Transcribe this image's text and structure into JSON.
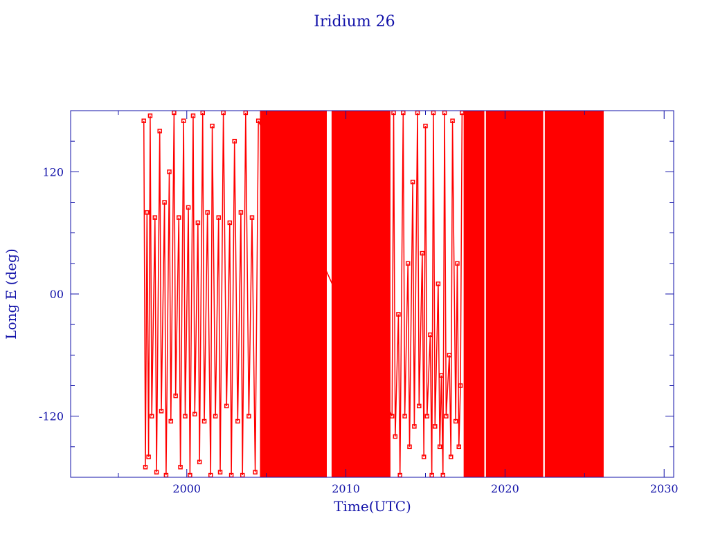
{
  "chart_data": {
    "type": "line",
    "title": "Iridium 26",
    "xlabel": "Time(UTC)",
    "ylabel": "Long E (deg)",
    "xlim": [
      1992.7,
      2030.6
    ],
    "ylim": [
      -180,
      180
    ],
    "x_ticks": [
      2000,
      2010,
      2020,
      2030
    ],
    "x_tick_labels": [
      "2000",
      "2010",
      "2020",
      "2030"
    ],
    "y_ticks": [
      -120,
      0,
      120
    ],
    "y_tick_labels": [
      "-120",
      "00",
      "120"
    ],
    "y_minor_step": 30,
    "grid": false,
    "colors": {
      "axis": "#1010a8",
      "series": "#ff0000"
    },
    "dense_ranges": [
      [
        2004.6,
        2008.8
      ],
      [
        2009.1,
        2012.8
      ],
      [
        2017.4,
        2018.7
      ],
      [
        2018.8,
        2022.4
      ],
      [
        2022.5,
        2026.2
      ]
    ],
    "series": [
      {
        "points": [
          [
            1997.3,
            170
          ],
          [
            1997.4,
            -170
          ],
          [
            1997.5,
            80
          ],
          [
            1997.6,
            -160
          ],
          [
            1997.7,
            175
          ],
          [
            1997.8,
            -120
          ],
          [
            1998.0,
            75
          ],
          [
            1998.1,
            -175
          ],
          [
            1998.3,
            160
          ],
          [
            1998.4,
            -115
          ],
          [
            1998.6,
            90
          ],
          [
            1998.7,
            -178
          ],
          [
            1998.9,
            120
          ],
          [
            1999.0,
            -125
          ],
          [
            1999.2,
            178
          ],
          [
            1999.3,
            -100
          ],
          [
            1999.5,
            75
          ],
          [
            1999.6,
            -170
          ],
          [
            1999.8,
            170
          ],
          [
            1999.9,
            -120
          ],
          [
            2000.1,
            85
          ],
          [
            2000.2,
            -178
          ],
          [
            2000.4,
            175
          ],
          [
            2000.5,
            -118
          ],
          [
            2000.7,
            70
          ],
          [
            2000.8,
            -165
          ],
          [
            2001.0,
            178
          ],
          [
            2001.1,
            -125
          ],
          [
            2001.3,
            80
          ],
          [
            2001.5,
            -178
          ],
          [
            2001.6,
            165
          ],
          [
            2001.8,
            -120
          ],
          [
            2002.0,
            75
          ],
          [
            2002.1,
            -175
          ],
          [
            2002.3,
            178
          ],
          [
            2002.5,
            -110
          ],
          [
            2002.7,
            70
          ],
          [
            2002.8,
            -178
          ],
          [
            2003.0,
            150
          ],
          [
            2003.2,
            -125
          ],
          [
            2003.4,
            80
          ],
          [
            2003.5,
            -178
          ],
          [
            2003.7,
            178
          ],
          [
            2003.9,
            -120
          ],
          [
            2004.1,
            75
          ],
          [
            2004.3,
            -175
          ],
          [
            2004.5,
            170
          ],
          [
            2012.9,
            -120
          ],
          [
            2013.0,
            178
          ],
          [
            2013.1,
            -140
          ],
          [
            2013.3,
            -20
          ],
          [
            2013.4,
            -178
          ],
          [
            2013.6,
            178
          ],
          [
            2013.7,
            -120
          ],
          [
            2013.9,
            30
          ],
          [
            2014.0,
            -150
          ],
          [
            2014.2,
            110
          ],
          [
            2014.3,
            -130
          ],
          [
            2014.5,
            178
          ],
          [
            2014.6,
            -110
          ],
          [
            2014.8,
            40
          ],
          [
            2014.9,
            -160
          ],
          [
            2015.0,
            165
          ],
          [
            2015.1,
            -120
          ],
          [
            2015.3,
            -40
          ],
          [
            2015.4,
            -178
          ],
          [
            2015.5,
            178
          ],
          [
            2015.6,
            -130
          ],
          [
            2015.8,
            10
          ],
          [
            2015.9,
            -150
          ],
          [
            2016.0,
            -80
          ],
          [
            2016.1,
            -178
          ],
          [
            2016.2,
            178
          ],
          [
            2016.3,
            -120
          ],
          [
            2016.5,
            -60
          ],
          [
            2016.6,
            -160
          ],
          [
            2016.7,
            170
          ],
          [
            2016.9,
            -125
          ],
          [
            2017.0,
            30
          ],
          [
            2017.1,
            -150
          ],
          [
            2017.2,
            -90
          ],
          [
            2017.3,
            178
          ]
        ]
      }
    ]
  }
}
